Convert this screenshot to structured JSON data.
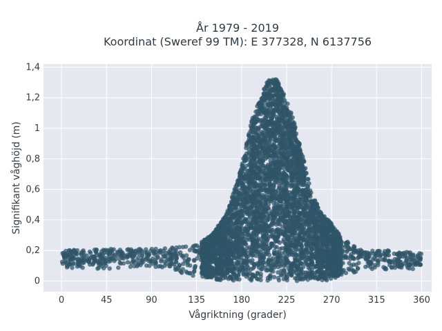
{
  "chart_data": {
    "type": "scatter",
    "title_line1": "År 1979 - 2019",
    "title_line2": "Koordinat (Sweref 99 TM): E 377328, N 6137756",
    "xlabel": "Vågriktning (grader)",
    "ylabel": "Signifikant våghöjd (m)",
    "xlim": [
      -18,
      370
    ],
    "ylim": [
      -0.07,
      1.42
    ],
    "xticks": [
      0,
      45,
      90,
      135,
      180,
      225,
      270,
      315,
      360
    ],
    "xtick_labels": [
      "0",
      "45",
      "90",
      "135",
      "180",
      "225",
      "270",
      "315",
      "360"
    ],
    "yticks": [
      0,
      0.2,
      0.4,
      0.6,
      0.8,
      1.0,
      1.2,
      1.4
    ],
    "ytick_labels": [
      "0",
      "0,2",
      "0,4",
      "0,6",
      "0,8",
      "1",
      "1,2",
      "1,4"
    ],
    "grid": true,
    "marker_color": "#2f5468",
    "background_color": "#e5e8f0",
    "envelope": {
      "direction": [
        0,
        45,
        90,
        110,
        135,
        150,
        165,
        180,
        190,
        200,
        205,
        210,
        215,
        220,
        230,
        240,
        250,
        260,
        270,
        280,
        300,
        330,
        360
      ],
      "upper_height": [
        0.2,
        0.21,
        0.21,
        0.22,
        0.24,
        0.3,
        0.44,
        0.75,
        1.05,
        1.22,
        1.3,
        1.33,
        1.32,
        1.27,
        1.1,
        0.85,
        0.58,
        0.44,
        0.38,
        0.28,
        0.2,
        0.2,
        0.18
      ],
      "lower_height": [
        0.08,
        0.08,
        0.1,
        0.06,
        0.03,
        0.01,
        0.0,
        0.0,
        0.0,
        0.0,
        0.0,
        0.0,
        0.0,
        0.0,
        0.0,
        0.0,
        0.0,
        0.0,
        0.01,
        0.03,
        0.07,
        0.07,
        0.08
      ]
    }
  }
}
